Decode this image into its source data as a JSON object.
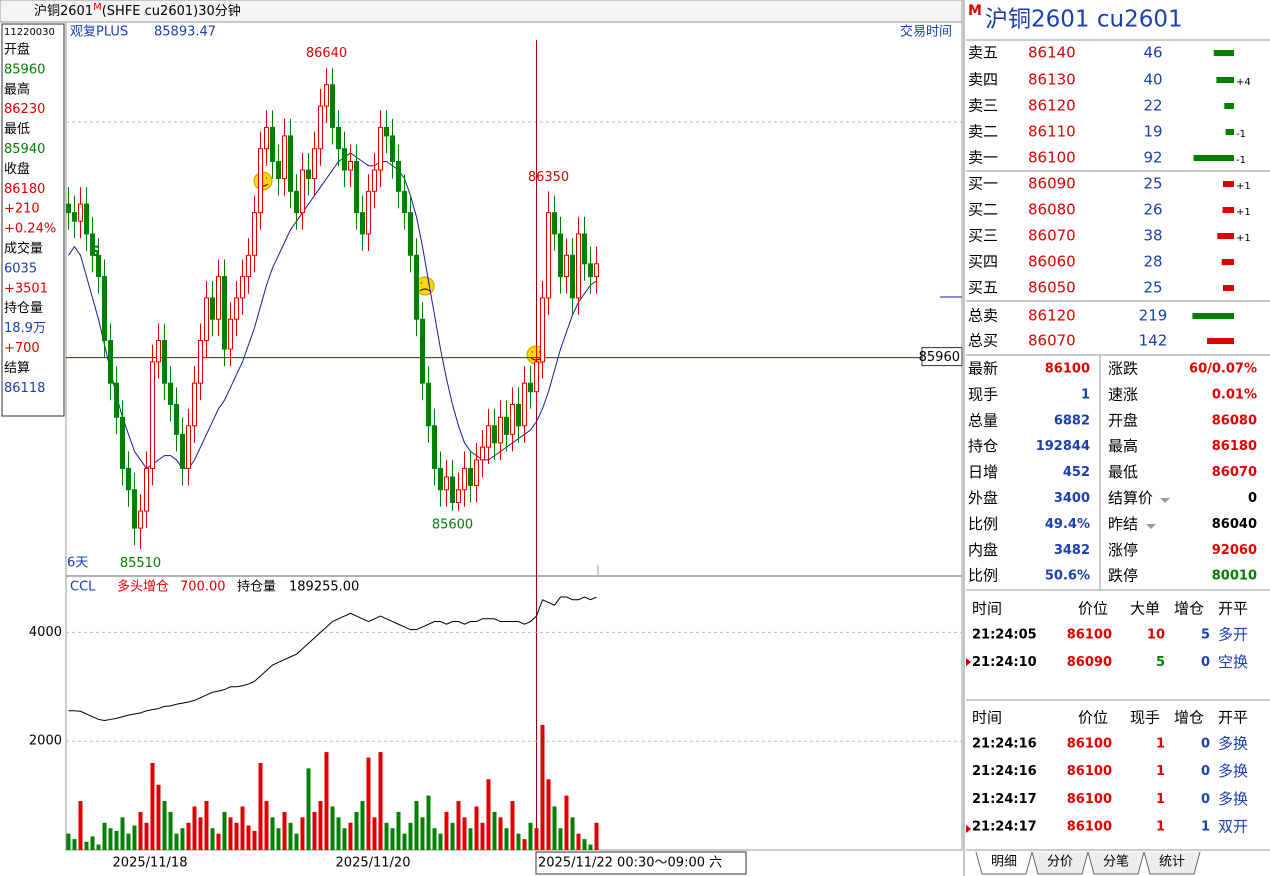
{
  "header": {
    "name": "沪铜2601",
    "badge": "M",
    "desc": "(SHFE cu2601)30分钟"
  },
  "info_panel": {
    "id": "11220030",
    "lines": [
      "开盘",
      "85960",
      "最高",
      "86230",
      "最低",
      "85940",
      "收盘",
      "86180",
      "+210",
      "+0.24%",
      "成交量",
      "6035",
      "+3501",
      "持仓量",
      "18.9万",
      "+700",
      "结算",
      "86118"
    ]
  },
  "chart": {
    "indicator": "观复PLUS",
    "indicator_value": "85893.47",
    "session_button": "交易时间",
    "days": "6天",
    "signal": "S",
    "up_color": "#e00000",
    "down_color": "#008000",
    "ma_color": "#1a1aa0",
    "price_ylim": [
      85450,
      86705
    ],
    "crosshair_price": 85960,
    "candles": [
      [
        86320,
        86360,
        86260,
        86300
      ],
      [
        86300,
        86340,
        86240,
        86280
      ],
      [
        86280,
        86360,
        86240,
        86320
      ],
      [
        86320,
        86360,
        86210,
        86250
      ],
      [
        86250,
        86290,
        86160,
        86200
      ],
      [
        86200,
        86240,
        86110,
        86150
      ],
      [
        86150,
        86190,
        85960,
        86000
      ],
      [
        86000,
        86040,
        85860,
        85900
      ],
      [
        85900,
        85940,
        85780,
        85820
      ],
      [
        85820,
        85860,
        85660,
        85700
      ],
      [
        85700,
        85740,
        85610,
        85650
      ],
      [
        85650,
        85690,
        85520,
        85560
      ],
      [
        85560,
        85640,
        85510,
        85600
      ],
      [
        85600,
        85740,
        85560,
        85700
      ],
      [
        85700,
        85990,
        85660,
        85950
      ],
      [
        85950,
        86040,
        85910,
        86000
      ],
      [
        86000,
        86040,
        85860,
        85900
      ],
      [
        85900,
        85940,
        85810,
        85850
      ],
      [
        85850,
        85890,
        85740,
        85780
      ],
      [
        85780,
        85820,
        85660,
        85700
      ],
      [
        85700,
        85840,
        85660,
        85800
      ],
      [
        85800,
        85940,
        85760,
        85900
      ],
      [
        85900,
        86040,
        85860,
        86000
      ],
      [
        86000,
        86140,
        85960,
        86100
      ],
      [
        86100,
        86140,
        86010,
        86050
      ],
      [
        86050,
        86190,
        86010,
        86150
      ],
      [
        86150,
        86190,
        85940,
        85980
      ],
      [
        85980,
        86090,
        85940,
        86050
      ],
      [
        86050,
        86140,
        86010,
        86100
      ],
      [
        86100,
        86190,
        86060,
        86150
      ],
      [
        86150,
        86240,
        86110,
        86200
      ],
      [
        86200,
        86340,
        86160,
        86300
      ],
      [
        86300,
        86490,
        86260,
        86450
      ],
      [
        86450,
        86540,
        86410,
        86500
      ],
      [
        86500,
        86540,
        86380,
        86420
      ],
      [
        86420,
        86460,
        86340,
        86380
      ],
      [
        86380,
        86520,
        86340,
        86480
      ],
      [
        86480,
        86520,
        86310,
        86350
      ],
      [
        86350,
        86390,
        86260,
        86300
      ],
      [
        86300,
        86440,
        86260,
        86400
      ],
      [
        86400,
        86440,
        86340,
        86380
      ],
      [
        86380,
        86490,
        86340,
        86450
      ],
      [
        86450,
        86590,
        86410,
        86550
      ],
      [
        86550,
        86640,
        86510,
        86600
      ],
      [
        86600,
        86640,
        86460,
        86500
      ],
      [
        86500,
        86540,
        86410,
        86450
      ],
      [
        86450,
        86490,
        86360,
        86400
      ],
      [
        86400,
        86460,
        86360,
        86420
      ],
      [
        86420,
        86460,
        86260,
        86300
      ],
      [
        86300,
        86340,
        86210,
        86250
      ],
      [
        86250,
        86390,
        86210,
        86350
      ],
      [
        86350,
        86440,
        86310,
        86400
      ],
      [
        86400,
        86540,
        86360,
        86500
      ],
      [
        86500,
        86540,
        86440,
        86480
      ],
      [
        86480,
        86520,
        86380,
        86420
      ],
      [
        86420,
        86460,
        86310,
        86350
      ],
      [
        86350,
        86390,
        86260,
        86300
      ],
      [
        86300,
        86340,
        86160,
        86200
      ],
      [
        86200,
        86240,
        86010,
        86050
      ],
      [
        86050,
        86090,
        85860,
        85900
      ],
      [
        85900,
        85940,
        85760,
        85800
      ],
      [
        85800,
        85840,
        85660,
        85700
      ],
      [
        85700,
        85740,
        85610,
        85650
      ],
      [
        85650,
        85720,
        85610,
        85680
      ],
      [
        85680,
        85720,
        85600,
        85620
      ],
      [
        85620,
        85690,
        85600,
        85650
      ],
      [
        85650,
        85740,
        85610,
        85700
      ],
      [
        85700,
        85740,
        85620,
        85660
      ],
      [
        85660,
        85760,
        85620,
        85720
      ],
      [
        85720,
        85790,
        85680,
        85750
      ],
      [
        85750,
        85840,
        85710,
        85800
      ],
      [
        85800,
        85840,
        85720,
        85760
      ],
      [
        85760,
        85860,
        85720,
        85820
      ],
      [
        85820,
        85860,
        85740,
        85780
      ],
      [
        85780,
        85890,
        85740,
        85850
      ],
      [
        85850,
        85890,
        85760,
        85800
      ],
      [
        85800,
        85940,
        85760,
        85900
      ],
      [
        85900,
        85940,
        85840,
        85880
      ],
      [
        85880,
        85990,
        85840,
        85950
      ],
      [
        85950,
        86140,
        85910,
        86100
      ],
      [
        86100,
        86350,
        86060,
        86300
      ],
      [
        86300,
        86340,
        86210,
        86250
      ],
      [
        86250,
        86290,
        86110,
        86150
      ],
      [
        86150,
        86240,
        86110,
        86200
      ],
      [
        86200,
        86240,
        86060,
        86100
      ],
      [
        86100,
        86290,
        86060,
        86250
      ],
      [
        86250,
        86290,
        86140,
        86180
      ],
      [
        86180,
        86220,
        86110,
        86150
      ],
      [
        86150,
        86220,
        86110,
        86180
      ]
    ],
    "ma": [
      86200,
      86220,
      86200,
      86150,
      86100,
      86050,
      85990,
      85930,
      85870,
      85820,
      85780,
      85740,
      85720,
      85700,
      85710,
      85720,
      85730,
      85730,
      85720,
      85700,
      85700,
      85720,
      85750,
      85780,
      85810,
      85840,
      85860,
      85890,
      85920,
      85950,
      85990,
      86030,
      86080,
      86130,
      86170,
      86200,
      86230,
      86260,
      86280,
      86300,
      86320,
      86340,
      86360,
      86380,
      86400,
      86420,
      86430,
      86440,
      86430,
      86420,
      86410,
      86410,
      86420,
      86420,
      86410,
      86400,
      86380,
      86340,
      86290,
      86220,
      86140,
      86060,
      85980,
      85910,
      85850,
      85800,
      85760,
      85740,
      85730,
      85720,
      85720,
      85730,
      85740,
      85750,
      85760,
      85770,
      85780,
      85790,
      85810,
      85840,
      85880,
      85930,
      85980,
      86020,
      86060,
      86090,
      86110,
      86130,
      86140
    ],
    "sub_name": "CCL",
    "sub_label1": "多头增仓",
    "sub_value1": "700.00",
    "sub_label2": "持仓量",
    "sub_value2": "189255.00",
    "sub_ylim": [
      0,
      5000
    ],
    "sub_yticks": [
      2000,
      4000
    ],
    "volume": [
      300,
      200,
      900,
      150,
      250,
      100,
      500,
      400,
      350,
      600,
      300,
      450,
      700,
      500,
      1600,
      1200,
      900,
      700,
      300,
      400,
      500,
      800,
      600,
      900,
      400,
      300,
      700,
      600,
      500,
      800,
      450,
      350,
      1600,
      900,
      600,
      400,
      700,
      500,
      300,
      600,
      1500,
      700,
      900,
      1800,
      800,
      600,
      400,
      500,
      700,
      900,
      1700,
      600,
      1800,
      500,
      400,
      700,
      300,
      500,
      900,
      600,
      1000,
      400,
      300,
      700,
      500,
      900,
      600,
      400,
      800,
      500,
      1300,
      700,
      600,
      400,
      900,
      300,
      200,
      500,
      400,
      2300,
      1300,
      800,
      400,
      1000,
      600,
      300,
      200,
      100,
      500
    ],
    "open_interest": [
      2560,
      2560,
      2550,
      2500,
      2450,
      2400,
      2380,
      2400,
      2420,
      2450,
      2480,
      2500,
      2520,
      2560,
      2580,
      2600,
      2640,
      2650,
      2680,
      2700,
      2720,
      2750,
      2800,
      2850,
      2900,
      2920,
      2950,
      3000,
      3000,
      3020,
      3050,
      3100,
      3200,
      3300,
      3400,
      3450,
      3500,
      3550,
      3600,
      3700,
      3800,
      3900,
      4000,
      4100,
      4200,
      4250,
      4300,
      4350,
      4300,
      4250,
      4200,
      4250,
      4300,
      4250,
      4200,
      4150,
      4100,
      4050,
      4050,
      4100,
      4150,
      4200,
      4200,
      4150,
      4200,
      4200,
      4150,
      4200,
      4200,
      4250,
      4250,
      4250,
      4200,
      4200,
      4200,
      4200,
      4150,
      4200,
      4300,
      4600,
      4550,
      4500,
      4650,
      4650,
      4600,
      4600,
      4650,
      4600,
      4650
    ],
    "x_labels": [
      "2025/11/18",
      "2025/11/20",
      "2025/11/22 00:30～09:00 六"
    ]
  },
  "quote": {
    "badge": "M",
    "title": "沪铜2601  cu2601",
    "book": [
      [
        "卖五",
        "86140",
        46,
        ""
      ],
      [
        "卖四",
        "86130",
        40,
        "+4"
      ],
      [
        "卖三",
        "86120",
        22,
        ""
      ],
      [
        "卖二",
        "86110",
        19,
        "-1"
      ],
      [
        "卖一",
        "86100",
        92,
        "-1"
      ],
      [
        "买一",
        "86090",
        25,
        "+1"
      ],
      [
        "买二",
        "86080",
        26,
        "+1"
      ],
      [
        "买三",
        "86070",
        38,
        "+1"
      ],
      [
        "买四",
        "86060",
        28,
        ""
      ],
      [
        "买五",
        "86050",
        25,
        ""
      ]
    ],
    "totals": [
      [
        "总卖",
        "86120",
        219
      ],
      [
        "总买",
        "86070",
        142
      ]
    ],
    "stats": [
      [
        "最新",
        "86100",
        "涨跌",
        "60/0.07%"
      ],
      [
        "现手",
        "1",
        "速涨",
        "0.01%"
      ],
      [
        "总量",
        "6882",
        "开盘",
        "86080"
      ],
      [
        "持仓",
        "192844",
        "最高",
        "86180"
      ],
      [
        "日增",
        "452",
        "最低",
        "86070"
      ],
      [
        "外盘",
        "3400",
        "结算价",
        "0"
      ],
      [
        "比例",
        "49.4%",
        "昨结",
        "86040"
      ],
      [
        "内盘",
        "3482",
        "涨停",
        "92060"
      ],
      [
        "比例",
        "50.6%",
        "跌停",
        "80010"
      ]
    ],
    "big_trades": {
      "header": [
        "时间",
        "价位",
        "大单",
        "增仓",
        "开平"
      ],
      "rows": [
        [
          "21:24:05",
          "86100",
          "10",
          "5",
          "多开"
        ],
        [
          "21:24:10",
          "86090",
          "5",
          "0",
          "空换"
        ]
      ]
    },
    "ticks": {
      "header": [
        "时间",
        "价位",
        "现手",
        "增仓",
        "开平"
      ],
      "rows": [
        [
          "21:24:16",
          "86100",
          "1",
          "0",
          "多换"
        ],
        [
          "21:24:16",
          "86100",
          "1",
          "0",
          "多换"
        ],
        [
          "21:24:17",
          "86100",
          "1",
          "0",
          "多换"
        ],
        [
          "21:24:17",
          "86100",
          "1",
          "1",
          "双开"
        ]
      ]
    },
    "tabs": [
      "明细",
      "分价",
      "分笔",
      "统计"
    ]
  }
}
